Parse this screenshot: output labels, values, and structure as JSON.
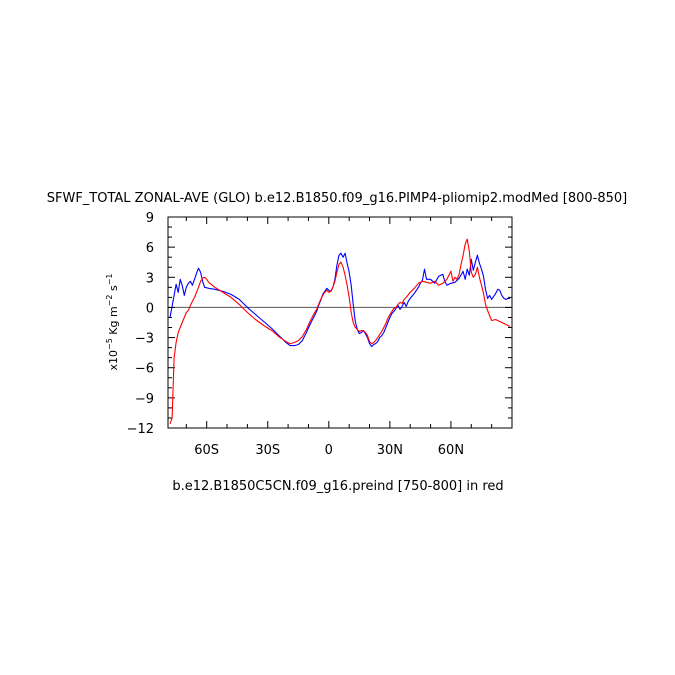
{
  "chart_data": {
    "type": "line",
    "title": "SFWF_TOTAL ZONAL-AVE (GLO) b.e12.B1850.f09_g16.PIMP4-pliomip2.modMed [800-850]",
    "subtitle": "b.e12.B1850C5CN.f09_g16.preind [750-800] in red",
    "ylabel": "x10^-5 Kg m^-2 s^-1",
    "ylabel_parts": {
      "prefix": "x10",
      "exp1": "−5",
      "mid": " Kg m",
      "exp2": "−2",
      "s": " s",
      "exp3": "−1"
    },
    "xlim": [
      -79,
      90
    ],
    "ylim": [
      -12,
      9
    ],
    "x_ticks": [
      {
        "value": -60,
        "label": "60S"
      },
      {
        "value": -30,
        "label": "30S"
      },
      {
        "value": 0,
        "label": "0"
      },
      {
        "value": 30,
        "label": "30N"
      },
      {
        "value": 60,
        "label": "60N"
      }
    ],
    "y_ticks": [
      {
        "value": 9,
        "label": "9"
      },
      {
        "value": 6,
        "label": "6"
      },
      {
        "value": 3,
        "label": "3"
      },
      {
        "value": 0,
        "label": "0"
      },
      {
        "value": -3,
        "label": "−3"
      },
      {
        "value": -6,
        "label": "−6"
      },
      {
        "value": -9,
        "label": "−9"
      },
      {
        "value": -12,
        "label": "−12"
      }
    ],
    "zero_line": true,
    "grid": false,
    "colors": {
      "blue": "#0000ff",
      "red": "#ff0000",
      "zero": "#555555"
    },
    "series": [
      {
        "color": "#0000ff",
        "x": [
          -78,
          -76,
          -75,
          -74,
          -73,
          -72,
          -71,
          -70,
          -69,
          -68,
          -67,
          -66,
          -65,
          -64,
          -63,
          -62,
          -61,
          -59,
          -56,
          -52,
          -48,
          -44,
          -40,
          -36,
          -32,
          -28,
          -24,
          -21,
          -19,
          -17,
          -15,
          -13,
          -11,
          -9,
          -7,
          -6,
          -5,
          -4,
          -3,
          -2,
          -1,
          0,
          1,
          2,
          3,
          4,
          5,
          6,
          7,
          8,
          9,
          10,
          11,
          12,
          13,
          14,
          15,
          16,
          17,
          18,
          19,
          20,
          21,
          22,
          23,
          24,
          25,
          26,
          27,
          28,
          29,
          30,
          31,
          32,
          33,
          34,
          35,
          36,
          37,
          38,
          39,
          40,
          42,
          44,
          45,
          46,
          47,
          48,
          50,
          52,
          54,
          56,
          57,
          58,
          60,
          62,
          64,
          66,
          67,
          68,
          69,
          70,
          71,
          72,
          73,
          74,
          75,
          76,
          77,
          78,
          79,
          80,
          81,
          82,
          83,
          84,
          85,
          86,
          87,
          88,
          89
        ],
        "y": [
          -1.0,
          1.2,
          2.3,
          1.5,
          2.8,
          2.2,
          1.2,
          2.0,
          2.4,
          2.6,
          2.2,
          2.8,
          3.4,
          3.9,
          3.5,
          2.6,
          2.0,
          1.9,
          1.8,
          1.6,
          1.3,
          0.8,
          0.0,
          -0.7,
          -1.4,
          -2.1,
          -2.9,
          -3.5,
          -3.8,
          -3.8,
          -3.7,
          -3.3,
          -2.5,
          -1.6,
          -0.8,
          -0.4,
          0.2,
          0.7,
          1.3,
          1.6,
          1.9,
          1.7,
          1.6,
          2.0,
          2.8,
          4.2,
          5.2,
          5.4,
          5.0,
          5.4,
          4.4,
          3.5,
          2.2,
          0.3,
          -1.4,
          -2.2,
          -2.6,
          -2.5,
          -2.3,
          -2.6,
          -3.0,
          -3.6,
          -3.9,
          -3.7,
          -3.6,
          -3.4,
          -3.0,
          -2.8,
          -2.5,
          -2.0,
          -1.5,
          -1.0,
          -0.6,
          -0.4,
          -0.1,
          0.2,
          -0.2,
          0.1,
          0.5,
          0.1,
          0.6,
          0.9,
          1.4,
          2.0,
          2.4,
          2.7,
          3.8,
          2.8,
          2.8,
          2.4,
          3.1,
          3.3,
          2.6,
          2.2,
          2.4,
          2.5,
          2.9,
          3.6,
          2.8,
          3.8,
          3.2,
          4.8,
          3.7,
          4.5,
          5.2,
          4.4,
          3.8,
          3.1,
          1.8,
          0.9,
          1.2,
          0.8,
          1.1,
          1.4,
          1.8,
          1.7,
          1.2,
          0.9,
          0.8,
          0.9,
          0.9
        ]
      },
      {
        "color": "#ff0000",
        "x": [
          -78,
          -77,
          -76,
          -75,
          -74,
          -73,
          -72,
          -71,
          -70,
          -69,
          -68,
          -67,
          -66,
          -65,
          -64,
          -63,
          -62,
          -61,
          -60,
          -59,
          -56,
          -52,
          -48,
          -44,
          -40,
          -36,
          -32,
          -28,
          -24,
          -21,
          -19,
          -17,
          -15,
          -13,
          -11,
          -9,
          -7,
          -6,
          -5,
          -4,
          -3,
          -2,
          -1,
          0,
          1,
          2,
          3,
          4,
          5,
          6,
          7,
          8,
          9,
          10,
          11,
          12,
          13,
          14,
          15,
          16,
          17,
          18,
          19,
          20,
          21,
          22,
          23,
          24,
          25,
          26,
          27,
          28,
          29,
          30,
          31,
          32,
          33,
          34,
          35,
          36,
          37,
          38,
          40,
          42,
          44,
          46,
          48,
          50,
          52,
          54,
          56,
          58,
          60,
          61,
          62,
          63,
          64,
          65,
          66,
          67,
          68,
          69,
          70,
          71,
          72,
          73,
          74,
          75,
          76,
          77,
          78,
          79,
          80,
          82,
          84,
          86,
          88,
          89
        ],
        "y": [
          -11.6,
          -11.0,
          -5.0,
          -3.5,
          -2.5,
          -2.0,
          -1.5,
          -1.0,
          -0.5,
          -0.3,
          0.2,
          0.6,
          1.0,
          1.5,
          2.0,
          2.6,
          2.9,
          3.0,
          2.8,
          2.5,
          2.0,
          1.5,
          1.0,
          0.3,
          -0.5,
          -1.2,
          -1.8,
          -2.3,
          -3.0,
          -3.4,
          -3.6,
          -3.5,
          -3.3,
          -2.9,
          -2.2,
          -1.3,
          -0.5,
          -0.2,
          0.3,
          0.8,
          1.2,
          1.5,
          1.7,
          1.5,
          1.6,
          2.0,
          2.6,
          3.5,
          4.3,
          4.5,
          4.0,
          3.2,
          2.2,
          1.0,
          -0.5,
          -1.5,
          -2.0,
          -2.2,
          -2.4,
          -2.3,
          -2.3,
          -2.5,
          -2.8,
          -3.4,
          -3.6,
          -3.5,
          -3.3,
          -3.0,
          -2.7,
          -2.4,
          -2.0,
          -1.6,
          -1.1,
          -0.7,
          -0.4,
          -0.1,
          0.0,
          0.3,
          0.5,
          0.4,
          0.8,
          1.0,
          1.5,
          1.9,
          2.4,
          2.6,
          2.5,
          2.4,
          2.6,
          2.2,
          2.4,
          2.8,
          3.6,
          2.6,
          3.0,
          2.8,
          3.3,
          4.3,
          5.2,
          6.3,
          6.8,
          5.6,
          3.5,
          3.0,
          3.3,
          4.0,
          3.0,
          2.2,
          1.4,
          0.3,
          -0.3,
          -0.8,
          -1.3,
          -1.2,
          -1.4,
          -1.6,
          -1.8,
          -1.9
        ]
      }
    ]
  }
}
